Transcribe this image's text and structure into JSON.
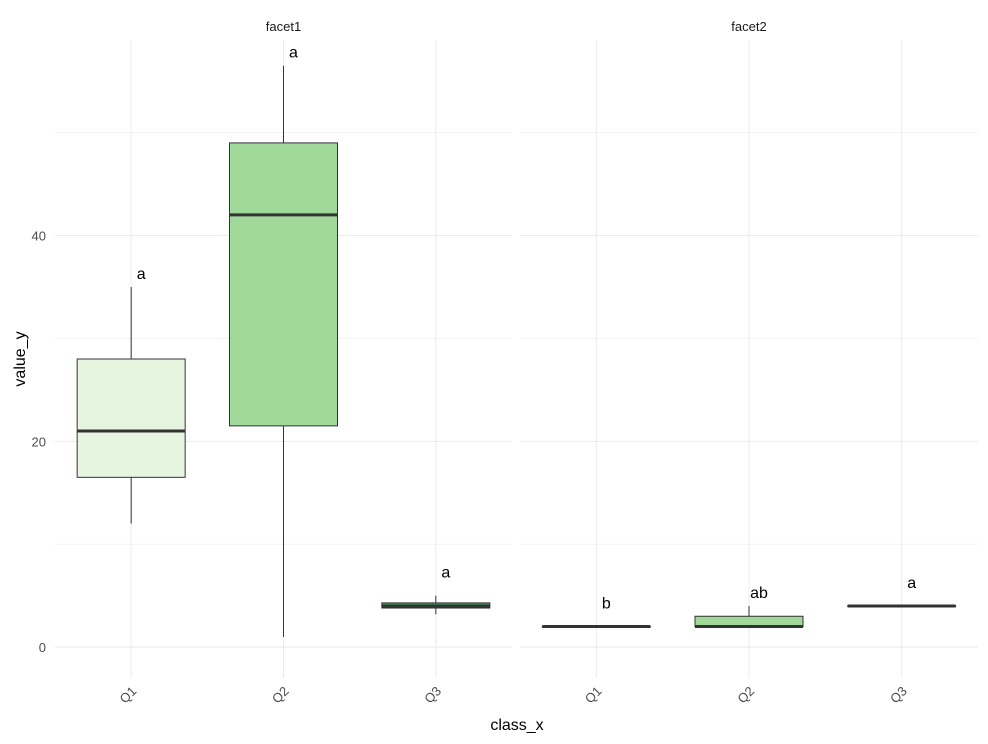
{
  "chart_data": {
    "type": "boxplot",
    "xlabel": "class_x",
    "ylabel": "value_y",
    "ylim": [
      -3,
      59
    ],
    "y_ticks": [
      0,
      20,
      40
    ],
    "grid": true,
    "categories": [
      "Q1",
      "Q2",
      "Q3"
    ],
    "colors": {
      "Q1": "#e5f5e0",
      "Q2": "#a1d99b",
      "Q3": "#31a354"
    },
    "facets": [
      {
        "name": "facet1",
        "boxes": [
          {
            "category": "Q1",
            "min": 12,
            "q1": 16.5,
            "median": 21,
            "q3": 28,
            "max": 35,
            "letter": "a"
          },
          {
            "category": "Q2",
            "min": 1,
            "q1": 21.5,
            "median": 42,
            "q3": 49,
            "max": 56.5,
            "letter": "a"
          },
          {
            "category": "Q3",
            "min": 3.2,
            "q1": 3.8,
            "median": 4,
            "q3": 4.3,
            "max": 5,
            "letter": "a"
          }
        ]
      },
      {
        "name": "facet2",
        "boxes": [
          {
            "category": "Q1",
            "min": 2,
            "q1": 2,
            "median": 2,
            "q3": 2,
            "max": 2,
            "letter": "b"
          },
          {
            "category": "Q2",
            "min": 2,
            "q1": 2,
            "median": 2,
            "q3": 3,
            "max": 4,
            "letter": "ab"
          },
          {
            "category": "Q3",
            "min": 4,
            "q1": 4,
            "median": 4,
            "q3": 4,
            "max": 4,
            "letter": "a"
          }
        ]
      }
    ]
  }
}
